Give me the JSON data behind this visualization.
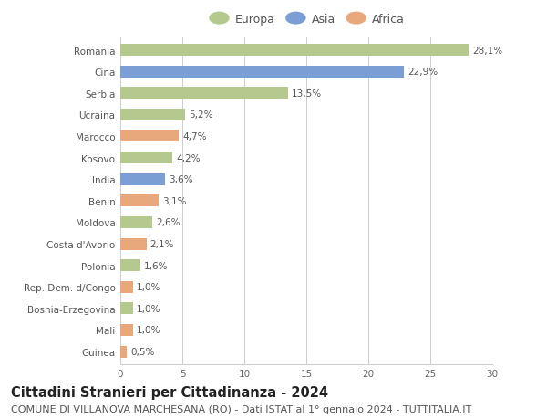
{
  "categories": [
    "Romania",
    "Cina",
    "Serbia",
    "Ucraina",
    "Marocco",
    "Kosovo",
    "India",
    "Benin",
    "Moldova",
    "Costa d'Avorio",
    "Polonia",
    "Rep. Dem. d/Congo",
    "Bosnia-Erzegovina",
    "Mali",
    "Guinea"
  ],
  "values": [
    28.1,
    22.9,
    13.5,
    5.2,
    4.7,
    4.2,
    3.6,
    3.1,
    2.6,
    2.1,
    1.6,
    1.0,
    1.0,
    1.0,
    0.5
  ],
  "labels": [
    "28,1%",
    "22,9%",
    "13,5%",
    "5,2%",
    "4,7%",
    "4,2%",
    "3,6%",
    "3,1%",
    "2,6%",
    "2,1%",
    "1,6%",
    "1,0%",
    "1,0%",
    "1,0%",
    "0,5%"
  ],
  "continents": [
    "Europa",
    "Asia",
    "Europa",
    "Europa",
    "Africa",
    "Europa",
    "Asia",
    "Africa",
    "Europa",
    "Africa",
    "Europa",
    "Africa",
    "Europa",
    "Africa",
    "Africa"
  ],
  "colors": {
    "Europa": "#b5c98e",
    "Asia": "#7b9fd4",
    "Africa": "#e8a87c"
  },
  "legend_items": [
    "Europa",
    "Asia",
    "Africa"
  ],
  "xlim": [
    0,
    30
  ],
  "xticks": [
    0,
    5,
    10,
    15,
    20,
    25,
    30
  ],
  "title": "Cittadini Stranieri per Cittadinanza - 2024",
  "subtitle": "COMUNE DI VILLANOVA MARCHESANA (RO) - Dati ISTAT al 1° gennaio 2024 - TUTTITALIA.IT",
  "background_color": "#ffffff",
  "grid_color": "#cccccc",
  "bar_height": 0.55,
  "title_fontsize": 10.5,
  "subtitle_fontsize": 8,
  "label_fontsize": 7.5,
  "tick_fontsize": 7.5,
  "legend_fontsize": 9
}
